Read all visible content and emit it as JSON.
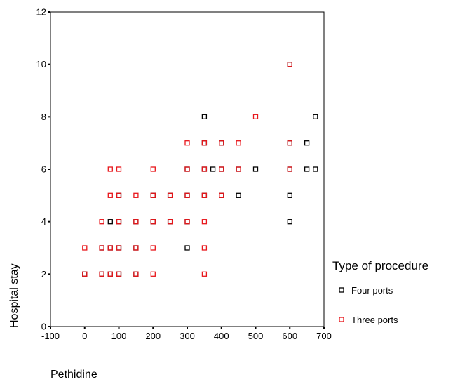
{
  "chart_data": {
    "type": "scatter",
    "title": "",
    "xlabel": "Pethidine",
    "ylabel": "Hospital stay",
    "xlim": [
      -100,
      700
    ],
    "ylim": [
      0,
      12
    ],
    "x_ticks": [
      "-100",
      "0",
      "100",
      "200",
      "300",
      "400",
      "500",
      "600",
      "700"
    ],
    "y_ticks": [
      "0",
      "2",
      "4",
      "6",
      "8",
      "10",
      "12"
    ],
    "grid": false,
    "marker": "hollow-square",
    "legend": {
      "title": "Type of procedure",
      "placement": "right"
    },
    "series": [
      {
        "name": "Four ports",
        "color": "#000000",
        "points": [
          {
            "x": 0,
            "y": 2
          },
          {
            "x": 50,
            "y": 2
          },
          {
            "x": 75,
            "y": 2
          },
          {
            "x": 100,
            "y": 2
          },
          {
            "x": 150,
            "y": 2
          },
          {
            "x": 50,
            "y": 3
          },
          {
            "x": 75,
            "y": 3
          },
          {
            "x": 100,
            "y": 3
          },
          {
            "x": 150,
            "y": 3
          },
          {
            "x": 300,
            "y": 3
          },
          {
            "x": 75,
            "y": 4
          },
          {
            "x": 100,
            "y": 4
          },
          {
            "x": 150,
            "y": 4
          },
          {
            "x": 200,
            "y": 4
          },
          {
            "x": 250,
            "y": 4
          },
          {
            "x": 300,
            "y": 4
          },
          {
            "x": 600,
            "y": 4
          },
          {
            "x": 100,
            "y": 5
          },
          {
            "x": 200,
            "y": 5
          },
          {
            "x": 250,
            "y": 5
          },
          {
            "x": 300,
            "y": 5
          },
          {
            "x": 350,
            "y": 5
          },
          {
            "x": 400,
            "y": 5
          },
          {
            "x": 450,
            "y": 5
          },
          {
            "x": 600,
            "y": 5
          },
          {
            "x": 300,
            "y": 6
          },
          {
            "x": 350,
            "y": 6
          },
          {
            "x": 375,
            "y": 6
          },
          {
            "x": 400,
            "y": 6
          },
          {
            "x": 450,
            "y": 6
          },
          {
            "x": 500,
            "y": 6
          },
          {
            "x": 600,
            "y": 6
          },
          {
            "x": 650,
            "y": 6
          },
          {
            "x": 675,
            "y": 6
          },
          {
            "x": 350,
            "y": 7
          },
          {
            "x": 400,
            "y": 7
          },
          {
            "x": 600,
            "y": 7
          },
          {
            "x": 650,
            "y": 7
          },
          {
            "x": 350,
            "y": 8
          },
          {
            "x": 675,
            "y": 8
          },
          {
            "x": 600,
            "y": 10
          }
        ]
      },
      {
        "name": "Three ports",
        "color": "#e8161b",
        "points": [
          {
            "x": 0,
            "y": 2
          },
          {
            "x": 50,
            "y": 2
          },
          {
            "x": 75,
            "y": 2
          },
          {
            "x": 100,
            "y": 2
          },
          {
            "x": 150,
            "y": 2
          },
          {
            "x": 200,
            "y": 2
          },
          {
            "x": 350,
            "y": 2
          },
          {
            "x": 0,
            "y": 3
          },
          {
            "x": 50,
            "y": 3
          },
          {
            "x": 75,
            "y": 3
          },
          {
            "x": 100,
            "y": 3
          },
          {
            "x": 150,
            "y": 3
          },
          {
            "x": 200,
            "y": 3
          },
          {
            "x": 350,
            "y": 3
          },
          {
            "x": 50,
            "y": 4
          },
          {
            "x": 100,
            "y": 4
          },
          {
            "x": 150,
            "y": 4
          },
          {
            "x": 200,
            "y": 4
          },
          {
            "x": 250,
            "y": 4
          },
          {
            "x": 300,
            "y": 4
          },
          {
            "x": 350,
            "y": 4
          },
          {
            "x": 75,
            "y": 5
          },
          {
            "x": 100,
            "y": 5
          },
          {
            "x": 150,
            "y": 5
          },
          {
            "x": 200,
            "y": 5
          },
          {
            "x": 250,
            "y": 5
          },
          {
            "x": 300,
            "y": 5
          },
          {
            "x": 350,
            "y": 5
          },
          {
            "x": 400,
            "y": 5
          },
          {
            "x": 75,
            "y": 6
          },
          {
            "x": 100,
            "y": 6
          },
          {
            "x": 200,
            "y": 6
          },
          {
            "x": 300,
            "y": 6
          },
          {
            "x": 350,
            "y": 6
          },
          {
            "x": 400,
            "y": 6
          },
          {
            "x": 450,
            "y": 6
          },
          {
            "x": 600,
            "y": 6
          },
          {
            "x": 300,
            "y": 7
          },
          {
            "x": 350,
            "y": 7
          },
          {
            "x": 400,
            "y": 7
          },
          {
            "x": 450,
            "y": 7
          },
          {
            "x": 600,
            "y": 7
          },
          {
            "x": 500,
            "y": 8
          },
          {
            "x": 600,
            "y": 10
          }
        ]
      }
    ]
  }
}
